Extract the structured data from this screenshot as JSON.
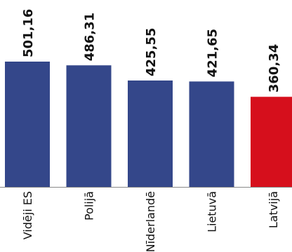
{
  "chart_data": {
    "type": "bar",
    "categories": [
      "Vidēji ES",
      "Polijā",
      "Nīderlandē",
      "Lietuvā",
      "Latvijā"
    ],
    "values": [
      501.16,
      486.31,
      425.55,
      421.65,
      360.34
    ],
    "value_labels": [
      "501,16",
      "486,31",
      "425,55",
      "421,65",
      "360,34"
    ],
    "colors": [
      "#34478a",
      "#34478a",
      "#34478a",
      "#34478a",
      "#d60f1c"
    ],
    "title": "",
    "xlabel": "",
    "ylabel": "",
    "ylim": [
      0,
      501.16
    ],
    "grid": false,
    "legend": "none"
  }
}
